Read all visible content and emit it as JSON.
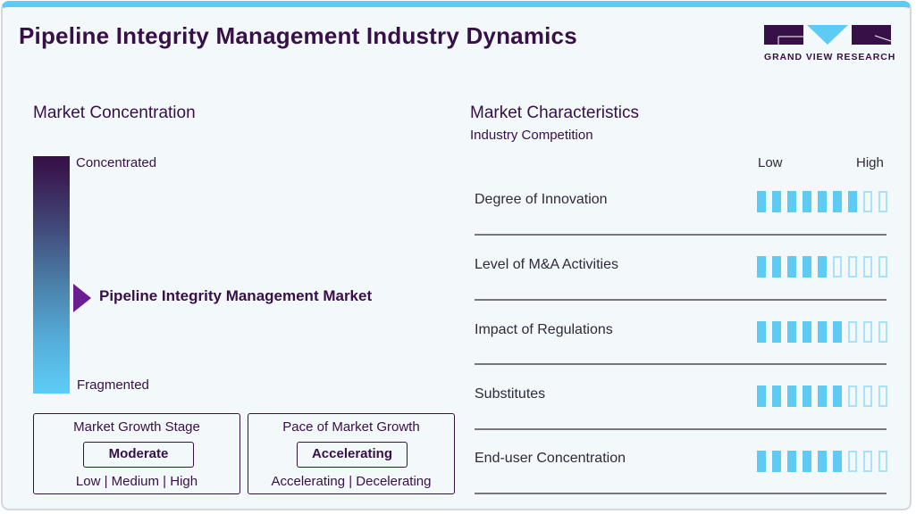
{
  "header": {
    "title": "Pipeline Integrity Management Industry Dynamics",
    "logo_text": "GRAND VIEW RESEARCH"
  },
  "concentration": {
    "title": "Market Concentration",
    "top_label": "Concentrated",
    "bottom_label": "Fragmented",
    "marker_label": "Pipeline Integrity Management Market",
    "marker_position_pct": 55
  },
  "growth_stage": {
    "title": "Market Growth Stage",
    "value": "Moderate",
    "options_text": "Low | Medium | High"
  },
  "pace": {
    "title": "Pace of Market Growth",
    "value": "Accelerating",
    "options_text": "Accelerating | Decelerating"
  },
  "characteristics": {
    "title": "Market Characteristics",
    "subtitle": "Industry Competition",
    "low_label": "Low",
    "high_label": "High",
    "scale_max": 9,
    "rows": [
      {
        "label": "Degree of Innovation",
        "level": 7
      },
      {
        "label": "Level of M&A Activities",
        "level": 5
      },
      {
        "label": "Impact of Regulations",
        "level": 6
      },
      {
        "label": "Substitutes",
        "level": 6
      },
      {
        "label": "End-user Concentration",
        "level": 6
      }
    ]
  },
  "colors": {
    "brand_purple": "#361046",
    "accent_cyan": "#5ecbf4",
    "marker_purple": "#6a1e92"
  }
}
